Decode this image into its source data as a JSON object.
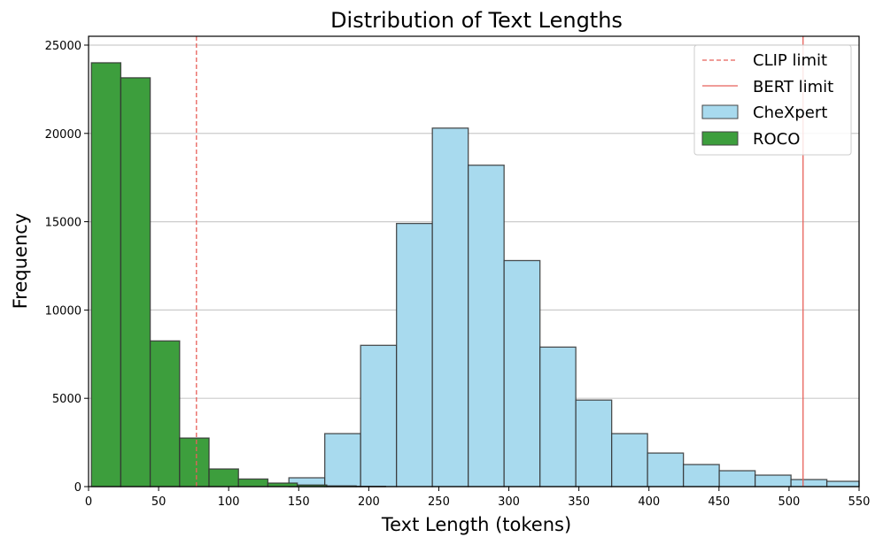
{
  "chart_data": {
    "type": "bar",
    "title": "Distribution of Text Lengths",
    "xlabel": "Text Length (tokens)",
    "ylabel": "Frequency",
    "xlim": [
      0,
      550
    ],
    "ylim": [
      0,
      25500
    ],
    "xticks": [
      0,
      50,
      100,
      150,
      200,
      250,
      300,
      350,
      400,
      450,
      500,
      550
    ],
    "yticks": [
      0,
      5000,
      10000,
      15000,
      20000,
      25000
    ],
    "grid": "horizontal",
    "legend_position": "top-right",
    "reference_lines": [
      {
        "name": "CLIP limit",
        "x": 77,
        "style": "dashed",
        "color": "#e8605a"
      },
      {
        "name": "BERT limit",
        "x": 510,
        "style": "solid",
        "color": "#e8605a"
      }
    ],
    "series": [
      {
        "name": "CheXpert",
        "color": "#a8daee",
        "bin_edges": [
          143,
          168.6,
          194.2,
          219.8,
          245.4,
          271,
          296.6,
          322.2,
          347.8,
          373.4,
          399,
          424.6,
          450.2,
          475.8,
          501.4,
          527,
          550
        ],
        "values": [
          500,
          3000,
          8000,
          14900,
          20300,
          18200,
          12800,
          7900,
          4900,
          3000,
          1900,
          1250,
          900,
          650,
          400,
          300
        ]
      },
      {
        "name": "ROCO",
        "color": "#3d9e3d",
        "bin_edges": [
          2,
          23,
          44,
          65,
          86,
          107,
          128,
          149,
          170,
          191,
          212
        ],
        "values": [
          24000,
          23150,
          8250,
          2750,
          1000,
          430,
          200,
          90,
          40,
          15
        ]
      }
    ]
  }
}
